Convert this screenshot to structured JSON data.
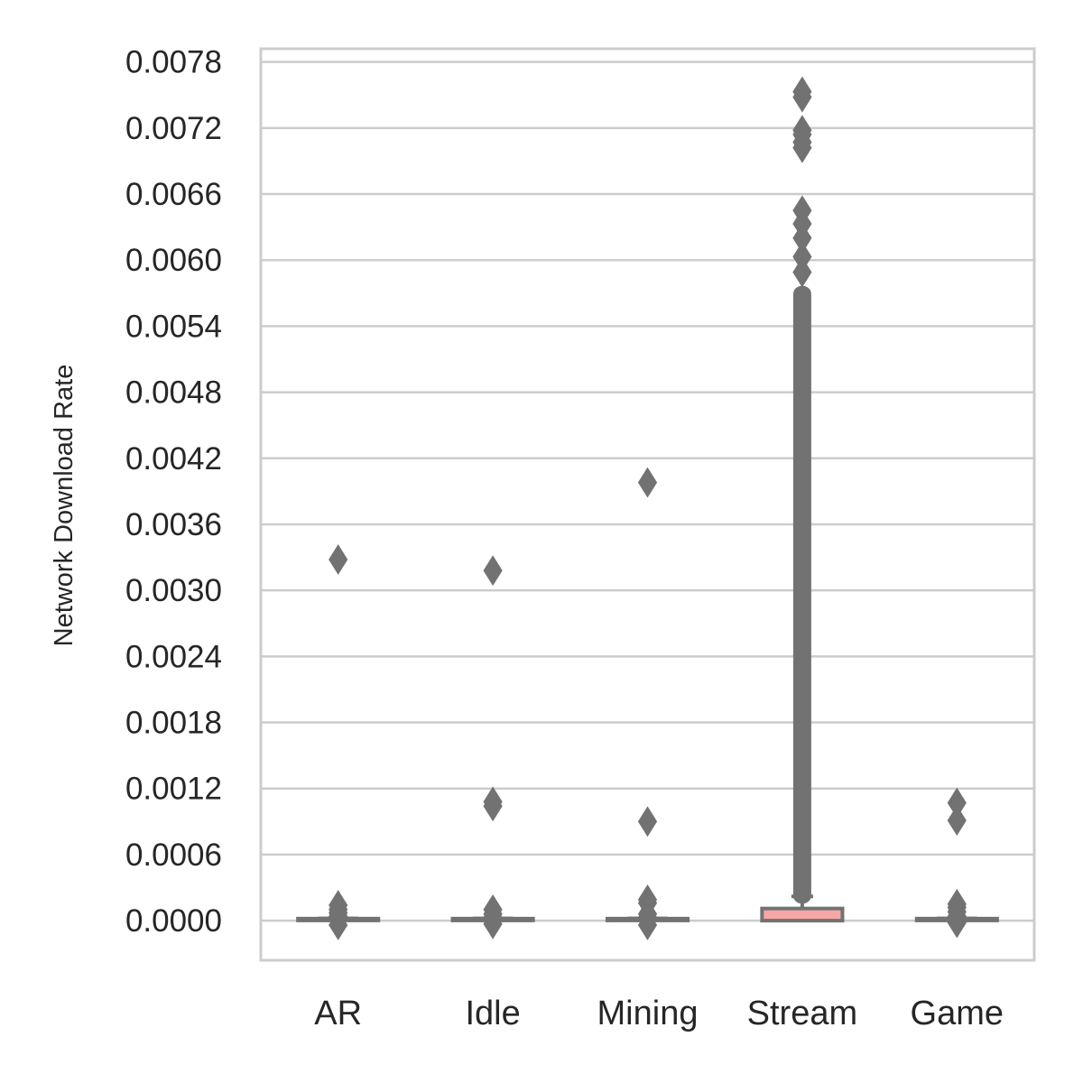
{
  "chart_data": {
    "type": "box",
    "title": "",
    "xlabel": "",
    "ylabel": "Network Download Rate",
    "ylim": [
      -0.00036,
      0.00792
    ],
    "grid": true,
    "categories": [
      "AR",
      "Idle",
      "Mining",
      "Stream",
      "Game"
    ],
    "y_ticks": [
      "0.0000",
      "0.0006",
      "0.0012",
      "0.0018",
      "0.0024",
      "0.0030",
      "0.0036",
      "0.0042",
      "0.0048",
      "0.0054",
      "0.0060",
      "0.0066",
      "0.0072",
      "0.0078"
    ],
    "boxes": [
      {
        "category": "AR",
        "q1": 0.0,
        "median": 0.0,
        "q3": 1e-05,
        "whisker_low": 0.0,
        "whisker_high": 2e-05,
        "outliers": [
          0.00328,
          0.00014,
          0.0001,
          7e-05,
          4e-05,
          2e-05,
          -4e-05
        ]
      },
      {
        "category": "Idle",
        "q1": 0.0,
        "median": 0.0,
        "q3": 1e-05,
        "whisker_low": 0.0,
        "whisker_high": 2e-05,
        "outliers": [
          0.00318,
          0.00108,
          0.00104,
          0.0001,
          6e-05,
          3e-05,
          -3e-05
        ]
      },
      {
        "category": "Mining",
        "q1": 0.0,
        "median": 0.0,
        "q3": 1e-05,
        "whisker_low": 0.0,
        "whisker_high": 2e-05,
        "outliers": [
          0.00398,
          0.0009,
          0.00019,
          0.00016,
          6e-05,
          3e-05,
          -4e-05
        ]
      },
      {
        "category": "Stream",
        "q1": 0.0,
        "median": 5e-05,
        "q3": 0.00011,
        "whisker_low": 0.0,
        "whisker_high": 0.00022,
        "outliers_dense_range": [
          0.00027,
          0.00565
        ],
        "outliers": [
          0.00589,
          0.00603,
          0.0062,
          0.00633,
          0.00645,
          0.00702,
          0.00707,
          0.00714,
          0.00718,
          0.00748,
          0.00753
        ]
      },
      {
        "category": "Game",
        "q1": 0.0,
        "median": 0.0,
        "q3": 1e-05,
        "whisker_low": 0.0,
        "whisker_high": 2e-05,
        "outliers": [
          0.00107,
          0.00091,
          0.00015,
          0.00012,
          8e-05,
          4e-05,
          -2e-05
        ]
      }
    ],
    "colors": {
      "box_edge": "#727272",
      "box_fill": "#f7a6a6",
      "median": "#f7a6a6",
      "grid": "#cccccc",
      "frame": "#cccccc",
      "text": "#262626"
    }
  }
}
